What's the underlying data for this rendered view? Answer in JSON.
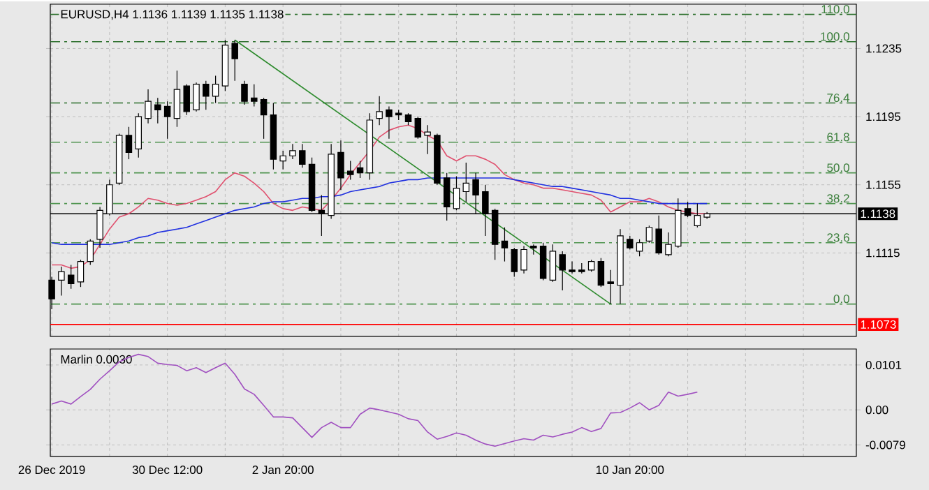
{
  "chart_data": [
    {
      "type": "candlestick",
      "title": "EURUSD,H4  1.1136 1.1139 1.1135 1.1138",
      "categories": [
        null,
        null,
        null,
        null,
        null,
        null,
        null,
        null,
        null,
        null,
        null,
        null,
        null,
        null,
        null,
        null,
        null,
        null,
        null,
        null,
        null,
        null,
        null,
        null,
        null,
        null,
        null,
        null,
        null,
        null,
        null,
        null,
        null,
        null,
        null,
        null,
        null,
        null,
        null,
        null,
        null,
        null,
        null,
        null,
        null,
        null,
        null,
        null,
        null,
        null,
        null,
        null,
        null,
        null,
        null,
        null,
        null,
        null,
        null,
        null,
        null,
        null,
        null,
        null,
        null,
        null,
        null,
        null,
        null
      ],
      "ohlc": [
        [
          1.1099,
          1.1101,
          1.1082,
          1.1088
        ],
        [
          1.1099,
          1.1107,
          1.109,
          1.1104
        ],
        [
          1.1102,
          1.1108,
          1.1094,
          1.1097
        ],
        [
          1.1098,
          1.1111,
          1.1095,
          1.111
        ],
        [
          1.111,
          1.1123,
          1.1108,
          1.1122
        ],
        [
          1.1123,
          1.1142,
          1.1118,
          1.114
        ],
        [
          1.1138,
          1.1158,
          1.1137,
          1.1155
        ],
        [
          1.1156,
          1.1185,
          1.1155,
          1.1184
        ],
        [
          1.1184,
          1.1189,
          1.117,
          1.1174
        ],
        [
          1.1176,
          1.1197,
          1.1171,
          1.1195
        ],
        [
          1.1194,
          1.1211,
          1.1191,
          1.1204
        ],
        [
          1.1202,
          1.1206,
          1.1191,
          1.1199
        ],
        [
          1.1201,
          1.1204,
          1.1182,
          1.1195
        ],
        [
          1.1194,
          1.1222,
          1.1189,
          1.1211
        ],
        [
          1.1213,
          1.1214,
          1.1196,
          1.1198
        ],
        [
          1.1199,
          1.1215,
          1.1198,
          1.1214
        ],
        [
          1.1214,
          1.1216,
          1.1199,
          1.1207
        ],
        [
          1.1207,
          1.1219,
          1.1203,
          1.1214
        ],
        [
          1.1213,
          1.124,
          1.121,
          1.1237
        ],
        [
          1.1238,
          1.124,
          1.1216,
          1.1229
        ],
        [
          1.1214,
          1.1216,
          1.1202,
          1.1204
        ],
        [
          1.1206,
          1.1214,
          1.1201,
          1.1204
        ],
        [
          1.1205,
          1.1206,
          1.1182,
          1.1196
        ],
        [
          1.1196,
          1.1203,
          1.1164,
          1.117
        ],
        [
          1.1169,
          1.1175,
          1.1164,
          1.1172
        ],
        [
          1.1172,
          1.1179,
          1.117,
          1.1175
        ],
        [
          1.1175,
          1.1179,
          1.1165,
          1.1167
        ],
        [
          1.1167,
          1.1171,
          1.1139,
          1.114
        ],
        [
          1.114,
          1.1149,
          1.1125,
          1.1138
        ],
        [
          1.1137,
          1.1179,
          1.1135,
          1.1173
        ],
        [
          1.1174,
          1.1181,
          1.1152,
          1.1159
        ],
        [
          1.1163,
          1.1169,
          1.1158,
          1.1161
        ],
        [
          1.1165,
          1.1169,
          1.1159,
          1.1162
        ],
        [
          1.1162,
          1.1197,
          1.1158,
          1.1193
        ],
        [
          1.1194,
          1.1207,
          1.119,
          1.1198
        ],
        [
          1.1199,
          1.1201,
          1.1182,
          1.1195
        ],
        [
          1.1197,
          1.1199,
          1.1193,
          1.1196
        ],
        [
          1.1196,
          1.1197,
          1.119,
          1.1192
        ],
        [
          1.1194,
          1.1195,
          1.1182,
          1.1183
        ],
        [
          1.1184,
          1.119,
          1.1173,
          1.1186
        ],
        [
          1.1184,
          1.1185,
          1.1155,
          1.1156
        ],
        [
          1.1159,
          1.1162,
          1.1134,
          1.1142
        ],
        [
          1.1141,
          1.116,
          1.114,
          1.1153
        ],
        [
          1.1151,
          1.1168,
          1.1145,
          1.1156
        ],
        [
          1.1158,
          1.1162,
          1.1138,
          1.1149
        ],
        [
          1.1151,
          1.1155,
          1.1125,
          1.1138
        ],
        [
          1.114,
          1.1141,
          1.1111,
          1.112
        ],
        [
          1.1122,
          1.113,
          1.111,
          1.1118
        ],
        [
          1.1117,
          1.1118,
          1.1101,
          1.1104
        ],
        [
          1.1105,
          1.1119,
          1.1103,
          1.1117
        ],
        [
          1.1119,
          1.112,
          1.1114,
          1.1118
        ],
        [
          1.1119,
          1.1121,
          1.1099,
          1.11
        ],
        [
          1.1099,
          1.112,
          1.1098,
          1.1116
        ],
        [
          1.1114,
          1.1116,
          1.1093,
          1.1105
        ],
        [
          1.1105,
          1.111,
          1.1103,
          1.1104
        ],
        [
          1.1105,
          1.1109,
          1.1103,
          1.1104
        ],
        [
          1.1105,
          1.1111,
          1.1104,
          1.111
        ],
        [
          1.111,
          1.1112,
          1.1095,
          1.1096
        ],
        [
          1.1098,
          1.1105,
          1.1085,
          1.1097
        ],
        [
          1.1096,
          1.1129,
          1.1085,
          1.1125
        ],
        [
          1.1123,
          1.1125,
          1.1117,
          1.1118
        ],
        [
          1.1116,
          1.1123,
          1.1113,
          1.1121
        ],
        [
          1.1122,
          1.1131,
          1.1121,
          1.113
        ],
        [
          1.1129,
          1.1137,
          1.1114,
          1.1115
        ],
        [
          1.1114,
          1.1127,
          1.1113,
          1.112
        ],
        [
          1.1119,
          1.1147,
          1.1118,
          1.114
        ],
        [
          1.1141,
          1.1145,
          1.1136,
          1.1137
        ],
        [
          1.1131,
          1.1144,
          1.113,
          1.1137
        ],
        [
          1.1136,
          1.1139,
          1.1135,
          1.1138
        ]
      ],
      "series": [
        {
          "type": "line",
          "color": "#e0506e",
          "values": [
            1.1108,
            1.1108,
            1.1106,
            1.1107,
            1.1111,
            1.112,
            1.1129,
            1.1136,
            1.1138,
            1.1142,
            1.1147,
            1.1146,
            1.1144,
            1.1143,
            1.1144,
            1.1146,
            1.1148,
            1.1151,
            1.1158,
            1.1162,
            1.116,
            1.1156,
            1.1151,
            1.1144,
            1.1141,
            1.114,
            1.1142,
            1.1141,
            1.114,
            1.1146,
            1.1153,
            1.1161,
            1.1168,
            1.1175,
            1.1183,
            1.1187,
            1.1189,
            1.119,
            1.1188,
            1.1184,
            1.1181,
            1.1172,
            1.1169,
            1.1172,
            1.1172,
            1.117,
            1.1167,
            1.1161,
            1.1158,
            1.1156,
            1.1155,
            1.1153,
            1.1153,
            1.1152,
            1.1151,
            1.115,
            1.1149,
            1.1146,
            1.1139,
            1.1142,
            1.1145,
            1.1145,
            1.1147,
            1.1145,
            1.1142,
            1.114,
            1.1139,
            1.1138,
            1.1138
          ]
        },
        {
          "type": "line",
          "color": "#2030e0",
          "values": [
            1.1121,
            1.112,
            1.112,
            1.112,
            1.112,
            1.112,
            1.112,
            1.1121,
            1.1122,
            1.1124,
            1.1125,
            1.1127,
            1.1128,
            1.1129,
            1.113,
            1.1132,
            1.1134,
            1.1136,
            1.1138,
            1.114,
            1.1141,
            1.1142,
            1.1144,
            1.1145,
            1.1145,
            1.1146,
            1.1147,
            1.1147,
            1.1148,
            1.1148,
            1.1149,
            1.1151,
            1.1152,
            1.1153,
            1.1154,
            1.1156,
            1.1157,
            1.1158,
            1.1158,
            1.1159,
            1.1159,
            1.1159,
            1.1159,
            1.1159,
            1.1159,
            1.1159,
            1.1159,
            1.1159,
            1.1158,
            1.1157,
            1.1156,
            1.1155,
            1.1154,
            1.1154,
            1.1153,
            1.1152,
            1.1151,
            1.115,
            1.1149,
            1.1147,
            1.1147,
            1.1146,
            1.1145,
            1.1144,
            1.1144,
            1.1144,
            1.1144,
            1.1144,
            1.1144
          ]
        },
        {
          "type": "line",
          "color": "#2e8b2e",
          "values": [
            null,
            null,
            null,
            null,
            null,
            null,
            null,
            null,
            null,
            null,
            null,
            null,
            null,
            null,
            null,
            null,
            null,
            null,
            null,
            1.124,
            null,
            null,
            null,
            null,
            null,
            null,
            null,
            null,
            null,
            null,
            null,
            null,
            null,
            null,
            null,
            null,
            null,
            null,
            null,
            null,
            null,
            null,
            null,
            null,
            null,
            null,
            null,
            null,
            null,
            null,
            null,
            null,
            null,
            null,
            null,
            null,
            null,
            null,
            1.1085,
            null,
            null,
            null,
            null,
            null,
            null,
            null,
            null,
            null,
            null
          ]
        }
      ],
      "ylim": [
        1.1066,
        1.1261
      ],
      "yticks": [
        1.1115,
        1.1155,
        1.1195,
        1.1235
      ],
      "grid": true,
      "tick_labels": "y",
      "ref_lines": [
        {
          "axis": "y",
          "value": 1.1255,
          "color": "#2a6e2a",
          "line_style": "dashed"
        },
        {
          "axis": "y",
          "value": 1.1239,
          "color": "#2a6e2a",
          "line_style": "dashed"
        },
        {
          "axis": "y",
          "value": 1.1203,
          "color": "#2a6e2a",
          "line_style": "dashed"
        },
        {
          "axis": "y",
          "value": 1.118,
          "color": "#4f944f",
          "line_style": "dashed"
        },
        {
          "axis": "y",
          "value": 1.1162,
          "color": "#4f944f",
          "line_style": "dashed"
        },
        {
          "axis": "y",
          "value": 1.1144,
          "color": "#4f944f",
          "line_style": "dashed"
        },
        {
          "axis": "y",
          "value": 1.1121,
          "color": "#4f944f",
          "line_style": "dashed"
        },
        {
          "axis": "y",
          "value": 1.1085,
          "color": "#4f944f",
          "line_style": "dashed"
        },
        {
          "axis": "y",
          "value": 1.1138,
          "label": "1.1138",
          "color": "#000000",
          "line_style": "solid"
        },
        {
          "axis": "y",
          "value": 1.1073,
          "label": "1.1073",
          "color": "#ff0000",
          "line_style": "solid"
        }
      ],
      "annotations": [
        {
          "text": "110.0",
          "y": 1.1255
        },
        {
          "text": "100.0",
          "y": 1.1239
        },
        {
          "text": "76.4",
          "y": 1.1203
        },
        {
          "text": "61.8",
          "y": 1.118
        },
        {
          "text": "50.0",
          "y": 1.1162
        },
        {
          "text": "38.2",
          "y": 1.1144
        },
        {
          "text": "23.6",
          "y": 1.1121
        },
        {
          "text": "0.0",
          "y": 1.1085
        }
      ]
    },
    {
      "type": "line",
      "title": "Marlin 0.0030",
      "categories": [
        "26 Dec 2019",
        null,
        null,
        null,
        null,
        null,
        null,
        null,
        null,
        null,
        null,
        null,
        "30 Dec 12:00",
        null,
        null,
        null,
        null,
        null,
        null,
        null,
        null,
        null,
        null,
        null,
        "2 Jan 20:00",
        null,
        null,
        null,
        null,
        null,
        null,
        null,
        null,
        null,
        null,
        null,
        null,
        null,
        null,
        null,
        null,
        null,
        null,
        null,
        null,
        null,
        null,
        null,
        null,
        null,
        null,
        null,
        null,
        null,
        null,
        null,
        null,
        null,
        null,
        null,
        "10 Jan 20:00",
        null,
        null,
        null,
        null,
        null,
        null,
        null,
        null
      ],
      "color": "#a050c0",
      "values": [
        0.0013,
        0.002,
        0.0013,
        0.003,
        0.0046,
        0.0069,
        0.0088,
        0.0108,
        0.0118,
        0.0125,
        0.012,
        0.0105,
        0.0102,
        0.01,
        0.0088,
        0.0095,
        0.0084,
        0.0095,
        0.0105,
        0.008,
        0.0047,
        0.0035,
        0.001,
        -0.0016,
        -0.0016,
        -0.0018,
        -0.004,
        -0.0062,
        -0.004,
        -0.0028,
        -0.004,
        -0.004,
        -0.001,
        0.0004,
        0.0,
        -0.0005,
        -0.001,
        -0.002,
        -0.0024,
        -0.005,
        -0.0066,
        -0.006,
        -0.0052,
        -0.0057,
        -0.0068,
        -0.0077,
        -0.0082,
        -0.0076,
        -0.007,
        -0.0065,
        -0.0068,
        -0.0057,
        -0.0061,
        -0.0055,
        -0.005,
        -0.004,
        -0.0049,
        -0.0042,
        -0.0007,
        -0.0006,
        0.0004,
        0.0016,
        0.0,
        0.001,
        0.004,
        0.0031,
        0.0035,
        0.004,
        null
      ],
      "ylim": [
        -0.0105,
        0.0137
      ],
      "yticks": [
        -0.0079,
        {
          "value": 0,
          "label": "0.00"
        },
        0.0101
      ],
      "grid": true
    }
  ]
}
